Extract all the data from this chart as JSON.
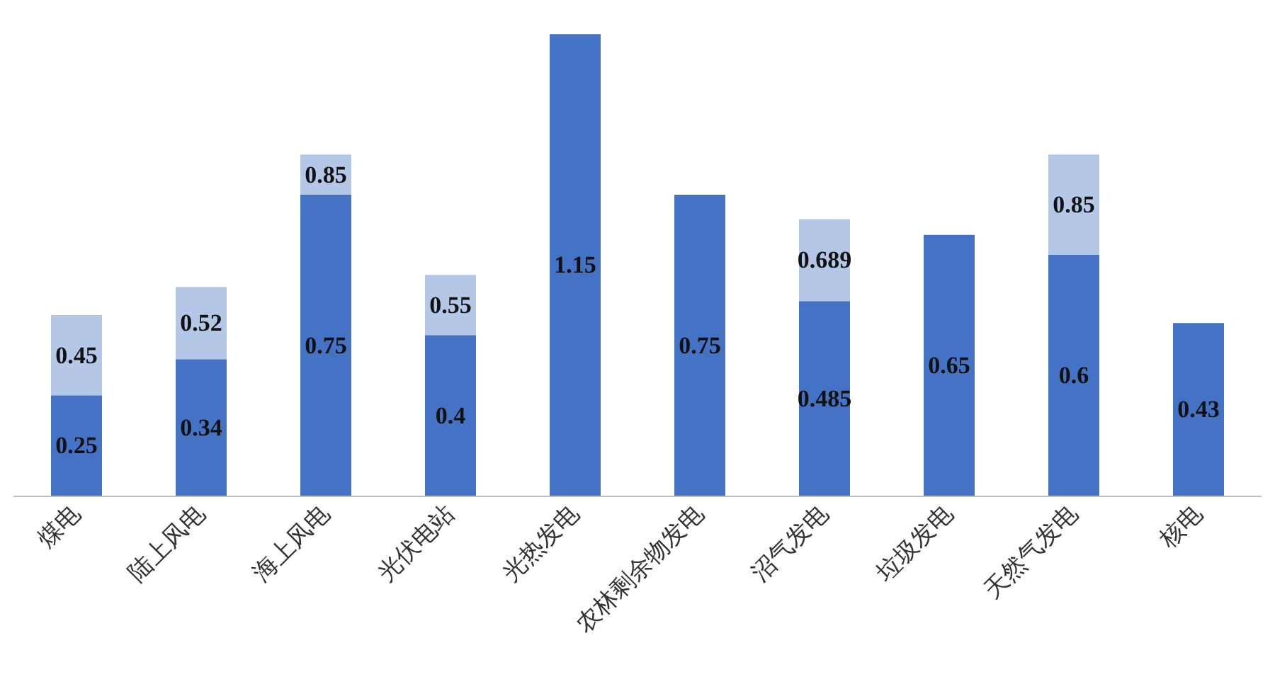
{
  "chart_data": {
    "type": "bar",
    "stacked": true,
    "grid": false,
    "categories": [
      "煤电",
      "陆上风电",
      "海上风电",
      "光伏电站",
      "光热发电",
      "农林剩余物发电",
      "沼气发电",
      "垃圾发电",
      "天然气发电",
      "核电"
    ],
    "series": [
      {
        "color": "#4472c4",
        "values": [
          0.25,
          0.34,
          0.75,
          0.4,
          1.15,
          0.75,
          0.485,
          0.65,
          0.6,
          0.43
        ],
        "value_labels": [
          "0.25",
          "0.34",
          "0.75",
          "0.4",
          "1.15",
          "0.75",
          "0.485",
          "0.65",
          "0.6",
          "0.43"
        ]
      },
      {
        "color": "#b4c7e7",
        "values": [
          0.2,
          0.18,
          0.1,
          0.15,
          null,
          null,
          0.204,
          null,
          0.25,
          null
        ]
      }
    ],
    "totals": [
      "0.45",
      "0.52",
      "0.85",
      "0.55",
      null,
      null,
      "0.689",
      null,
      "0.85",
      null
    ]
  }
}
